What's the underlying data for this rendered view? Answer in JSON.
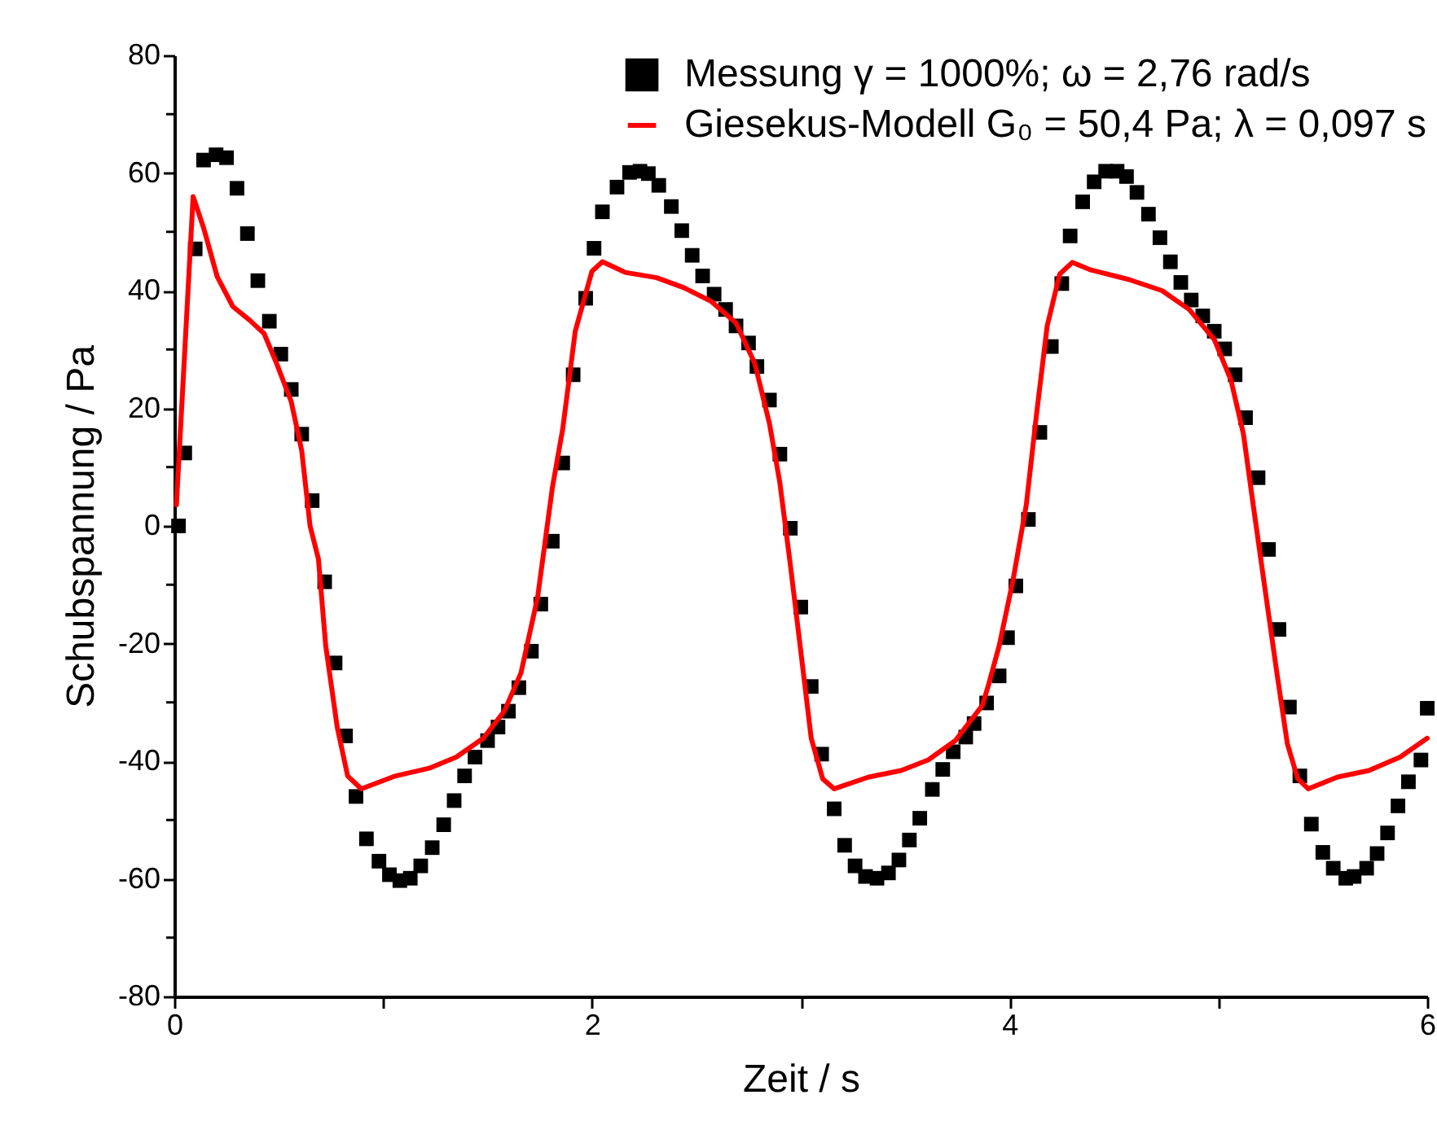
{
  "chart_data": {
    "type": "scatter",
    "xlabel": "Zeit / s",
    "ylabel": "Schubspannung / Pa",
    "xlim": [
      0,
      6
    ],
    "ylim": [
      -80,
      80
    ],
    "xticks": [
      0,
      {
        "value": 1,
        "label": null
      },
      2,
      {
        "value": 3,
        "label": null
      },
      4,
      {
        "value": 5,
        "label": null
      },
      6
    ],
    "yticks": [
      -80,
      {
        "value": -70,
        "label": null
      },
      -60,
      {
        "value": -50,
        "label": null
      },
      -40,
      {
        "value": -30,
        "label": null
      },
      -20,
      {
        "value": -10,
        "label": null
      },
      0,
      {
        "value": 10,
        "label": null
      },
      20,
      {
        "value": 30,
        "label": null
      },
      40,
      {
        "value": 50,
        "label": null
      },
      60,
      {
        "value": 70,
        "label": null
      },
      80
    ],
    "grid": false,
    "legend": "top right",
    "series": [
      {
        "name": "Messung γ = 1000%; ω = 2,76 rad/s",
        "marker": "square",
        "color": "#000000",
        "x": [
          0.02,
          0.05,
          0.1,
          0.14,
          0.2,
          0.25,
          0.3,
          0.35,
          0.4,
          0.455,
          0.51,
          0.56,
          0.61,
          0.66,
          0.72,
          0.77,
          0.82,
          0.87,
          0.92,
          0.98,
          1.03,
          1.08,
          1.13,
          1.18,
          1.235,
          1.29,
          1.34,
          1.39,
          1.44,
          1.5,
          1.55,
          1.6,
          1.65,
          1.71,
          1.755,
          1.81,
          1.86,
          1.91,
          1.97,
          2.01,
          2.05,
          2.12,
          2.18,
          2.23,
          2.27,
          2.32,
          2.38,
          2.43,
          2.48,
          2.53,
          2.585,
          2.64,
          2.69,
          2.75,
          2.79,
          2.85,
          2.9,
          2.95,
          3.0,
          3.05,
          3.1,
          3.16,
          3.21,
          3.26,
          3.31,
          3.365,
          3.42,
          3.47,
          3.52,
          3.57,
          3.63,
          3.68,
          3.73,
          3.79,
          3.83,
          3.89,
          3.95,
          3.99,
          4.03,
          4.09,
          4.145,
          4.2,
          4.25,
          4.29,
          4.35,
          4.405,
          4.46,
          4.515,
          4.56,
          4.61,
          4.665,
          4.72,
          4.77,
          4.82,
          4.87,
          4.925,
          4.98,
          5.03,
          5.08,
          5.13,
          5.19,
          5.24,
          5.29,
          5.34,
          5.39,
          5.445,
          5.5,
          5.55,
          5.61,
          5.65,
          5.71,
          5.76,
          5.81,
          5.86,
          5.91,
          5.97,
          6.0
        ],
        "values": [
          0,
          12.4,
          47.1,
          62.2,
          63.1,
          62.6,
          57.4,
          49.7,
          41.7,
          34.8,
          29.2,
          23.2,
          15.6,
          4.3,
          -9.5,
          -23.3,
          -35.7,
          -46.0,
          -53.2,
          -57.0,
          -59.3,
          -60.3,
          -59.9,
          -57.8,
          -54.7,
          -50.8,
          -46.7,
          -42.5,
          -39.3,
          -36.5,
          -34.2,
          -31.5,
          -27.5,
          -21.3,
          -13.3,
          -2.6,
          10.7,
          25.7,
          38.7,
          47.2,
          53.4,
          57.6,
          60.1,
          60.3,
          59.9,
          57.9,
          54.3,
          50.2,
          46.0,
          42.5,
          39.4,
          36.8,
          34.0,
          31.1,
          27.1,
          21.4,
          12.2,
          -0.4,
          -13.8,
          -27.3,
          -38.8,
          -48.1,
          -54.3,
          -57.8,
          -59.6,
          -59.9,
          -59.0,
          -56.8,
          -53.4,
          -49.7,
          -44.8,
          -41.4,
          -38.4,
          -35.9,
          -33.6,
          -30.1,
          -25.5,
          -19.0,
          -10.2,
          1.1,
          15.9,
          30.5,
          41.2,
          49.3,
          55.1,
          58.5,
          60.3,
          60.3,
          59.4,
          56.7,
          53.0,
          49.0,
          44.9,
          41.4,
          38.4,
          35.7,
          33.1,
          30.1,
          25.7,
          18.4,
          8.2,
          -4.0,
          -17.6,
          -30.8,
          -42.5,
          -50.7,
          -55.5,
          -58.2,
          -59.9,
          -59.6,
          -58.2,
          -55.7,
          -52.2,
          -47.6,
          -43.5,
          -39.8,
          -31
        ]
      },
      {
        "name": "Giesekus-Modell G₀ = 50,4 Pa; λ = 0,097 s",
        "type": "line",
        "line_style": "solid",
        "color": "#ff0000",
        "x": [
          0.01,
          0.09,
          0.14,
          0.205,
          0.28,
          0.36,
          0.43,
          0.49,
          0.56,
          0.61,
          0.65,
          0.69,
          0.725,
          0.78,
          0.83,
          0.895,
          1.06,
          1.22,
          1.35,
          1.48,
          1.58,
          1.66,
          1.74,
          1.81,
          1.86,
          1.92,
          2.0,
          2.05,
          2.16,
          2.31,
          2.44,
          2.57,
          2.69,
          2.78,
          2.85,
          2.9,
          2.95,
          3.0,
          3.05,
          3.105,
          3.16,
          3.325,
          3.48,
          3.61,
          3.74,
          3.87,
          3.9,
          3.95,
          4.016,
          4.08,
          4.13,
          4.18,
          4.24,
          4.3,
          4.39,
          4.57,
          4.73,
          4.86,
          4.98,
          5.06,
          5.12,
          5.17,
          5.225,
          5.28,
          5.33,
          5.38,
          5.43,
          5.57,
          5.72,
          5.87,
          6.0
        ],
        "values": [
          3.6,
          56,
          50.7,
          42.4,
          37.3,
          35.0,
          32.7,
          27.6,
          21.1,
          12.8,
          0,
          -5.6,
          -20.4,
          -34.2,
          -42.5,
          -44.7,
          -42.5,
          -41.2,
          -39.3,
          -36.1,
          -31.5,
          -25.0,
          -12.1,
          6.4,
          16.5,
          33.1,
          43.3,
          44.9,
          43.1,
          42.2,
          40.5,
          38.2,
          34.5,
          27.6,
          17.4,
          7.3,
          -6.6,
          -21.3,
          -36.1,
          -43.0,
          -44.7,
          -42.7,
          -41.6,
          -39.8,
          -36.5,
          -30.5,
          -26.9,
          -20.4,
          -9.3,
          3.6,
          19.3,
          34.0,
          42.8,
          44.8,
          43.5,
          41.9,
          40.0,
          36.8,
          31.7,
          24.8,
          15.6,
          2.7,
          -11.2,
          -25.0,
          -37.0,
          -43.0,
          -44.7,
          -42.7,
          -41.6,
          -39.3,
          -36.1
        ]
      }
    ]
  }
}
